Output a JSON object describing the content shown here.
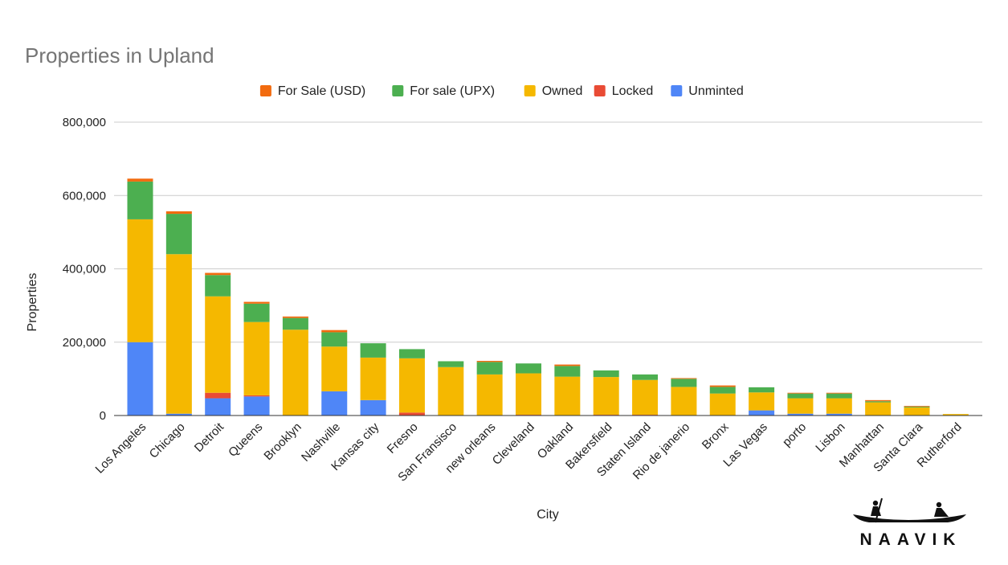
{
  "chart_data": {
    "type": "bar",
    "stacked": true,
    "title": "Properties in Upland",
    "xlabel": "City",
    "ylabel": "Properties",
    "ylim": [
      0,
      800000
    ],
    "y_ticks": [
      0,
      200000,
      400000,
      600000,
      800000
    ],
    "y_tick_labels": [
      "0",
      "200,000",
      "400,000",
      "600,000",
      "800,000"
    ],
    "grid": true,
    "legend_position": "top",
    "categories": [
      "Los Angeles",
      "Chicago",
      "Detroit",
      "Queens",
      "Brooklyn",
      "Nashville",
      "Kansas city",
      "Fresno",
      "San Fransisco",
      "new orleans",
      "Cleveland",
      "Oakland",
      "Bakersfield",
      "Staten Island",
      "Rio de janerio",
      "Bronx",
      "Las Vegas",
      "porto",
      "Lisbon",
      "Manhattan",
      "Santa Clara",
      "Rutherford"
    ],
    "series": [
      {
        "name": "Unminted",
        "color": "#4f86f7",
        "values": [
          200000,
          5000,
          47000,
          52000,
          0,
          66000,
          42000,
          0,
          0,
          0,
          0,
          0,
          0,
          0,
          0,
          0,
          14000,
          5000,
          5000,
          0,
          0,
          0
        ]
      },
      {
        "name": "Locked",
        "color": "#e94b35",
        "values": [
          0,
          0,
          15000,
          3000,
          0,
          0,
          0,
          8000,
          0,
          0,
          2000,
          0,
          2000,
          2000,
          1000,
          0,
          0,
          0,
          0,
          0,
          0,
          0
        ]
      },
      {
        "name": "Owned",
        "color": "#f5b800",
        "values": [
          335000,
          435000,
          263000,
          200000,
          234000,
          122000,
          116000,
          148000,
          132000,
          112000,
          113000,
          106000,
          103000,
          95000,
          77000,
          60000,
          49000,
          42000,
          42000,
          36000,
          22000,
          4000
        ]
      },
      {
        "name": "For sale (UPX)",
        "color": "#4caf50",
        "values": [
          103000,
          110000,
          58000,
          50000,
          32000,
          39000,
          39000,
          25000,
          16000,
          34000,
          27000,
          29000,
          18000,
          15000,
          22000,
          18000,
          14000,
          13000,
          13000,
          3000,
          2000,
          0
        ]
      },
      {
        "name": "For Sale (USD)",
        "color": "#f26b0f",
        "values": [
          8000,
          7000,
          6000,
          5000,
          4000,
          6000,
          0,
          0,
          0,
          3000,
          0,
          4000,
          0,
          0,
          2000,
          4000,
          0,
          2000,
          2000,
          3000,
          2000,
          0
        ]
      }
    ],
    "legend_order": [
      "For Sale (USD)",
      "For sale (UPX)",
      "Owned",
      "Locked",
      "Unminted"
    ]
  },
  "brand": {
    "name": "NAAVIK",
    "logo_icon": "boat-with-rowers-icon"
  }
}
